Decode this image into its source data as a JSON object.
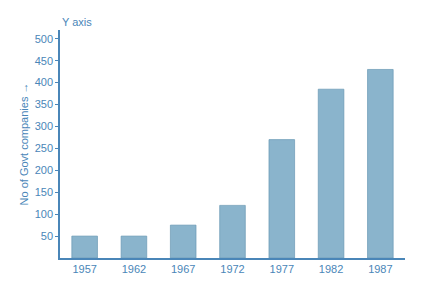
{
  "chart_data": {
    "type": "bar",
    "categories": [
      "1957",
      "1962",
      "1967",
      "1972",
      "1977",
      "1982",
      "1987"
    ],
    "values": [
      50,
      50,
      75,
      120,
      270,
      385,
      430
    ],
    "color": "#8ab4cc",
    "ylabel": "No of Govt companies →",
    "annotations": [
      "Y axis"
    ],
    "ylim": [
      0,
      520
    ],
    "yticks": [
      50,
      100,
      150,
      200,
      250,
      300,
      350,
      400,
      450,
      500
    ],
    "grid": false
  }
}
